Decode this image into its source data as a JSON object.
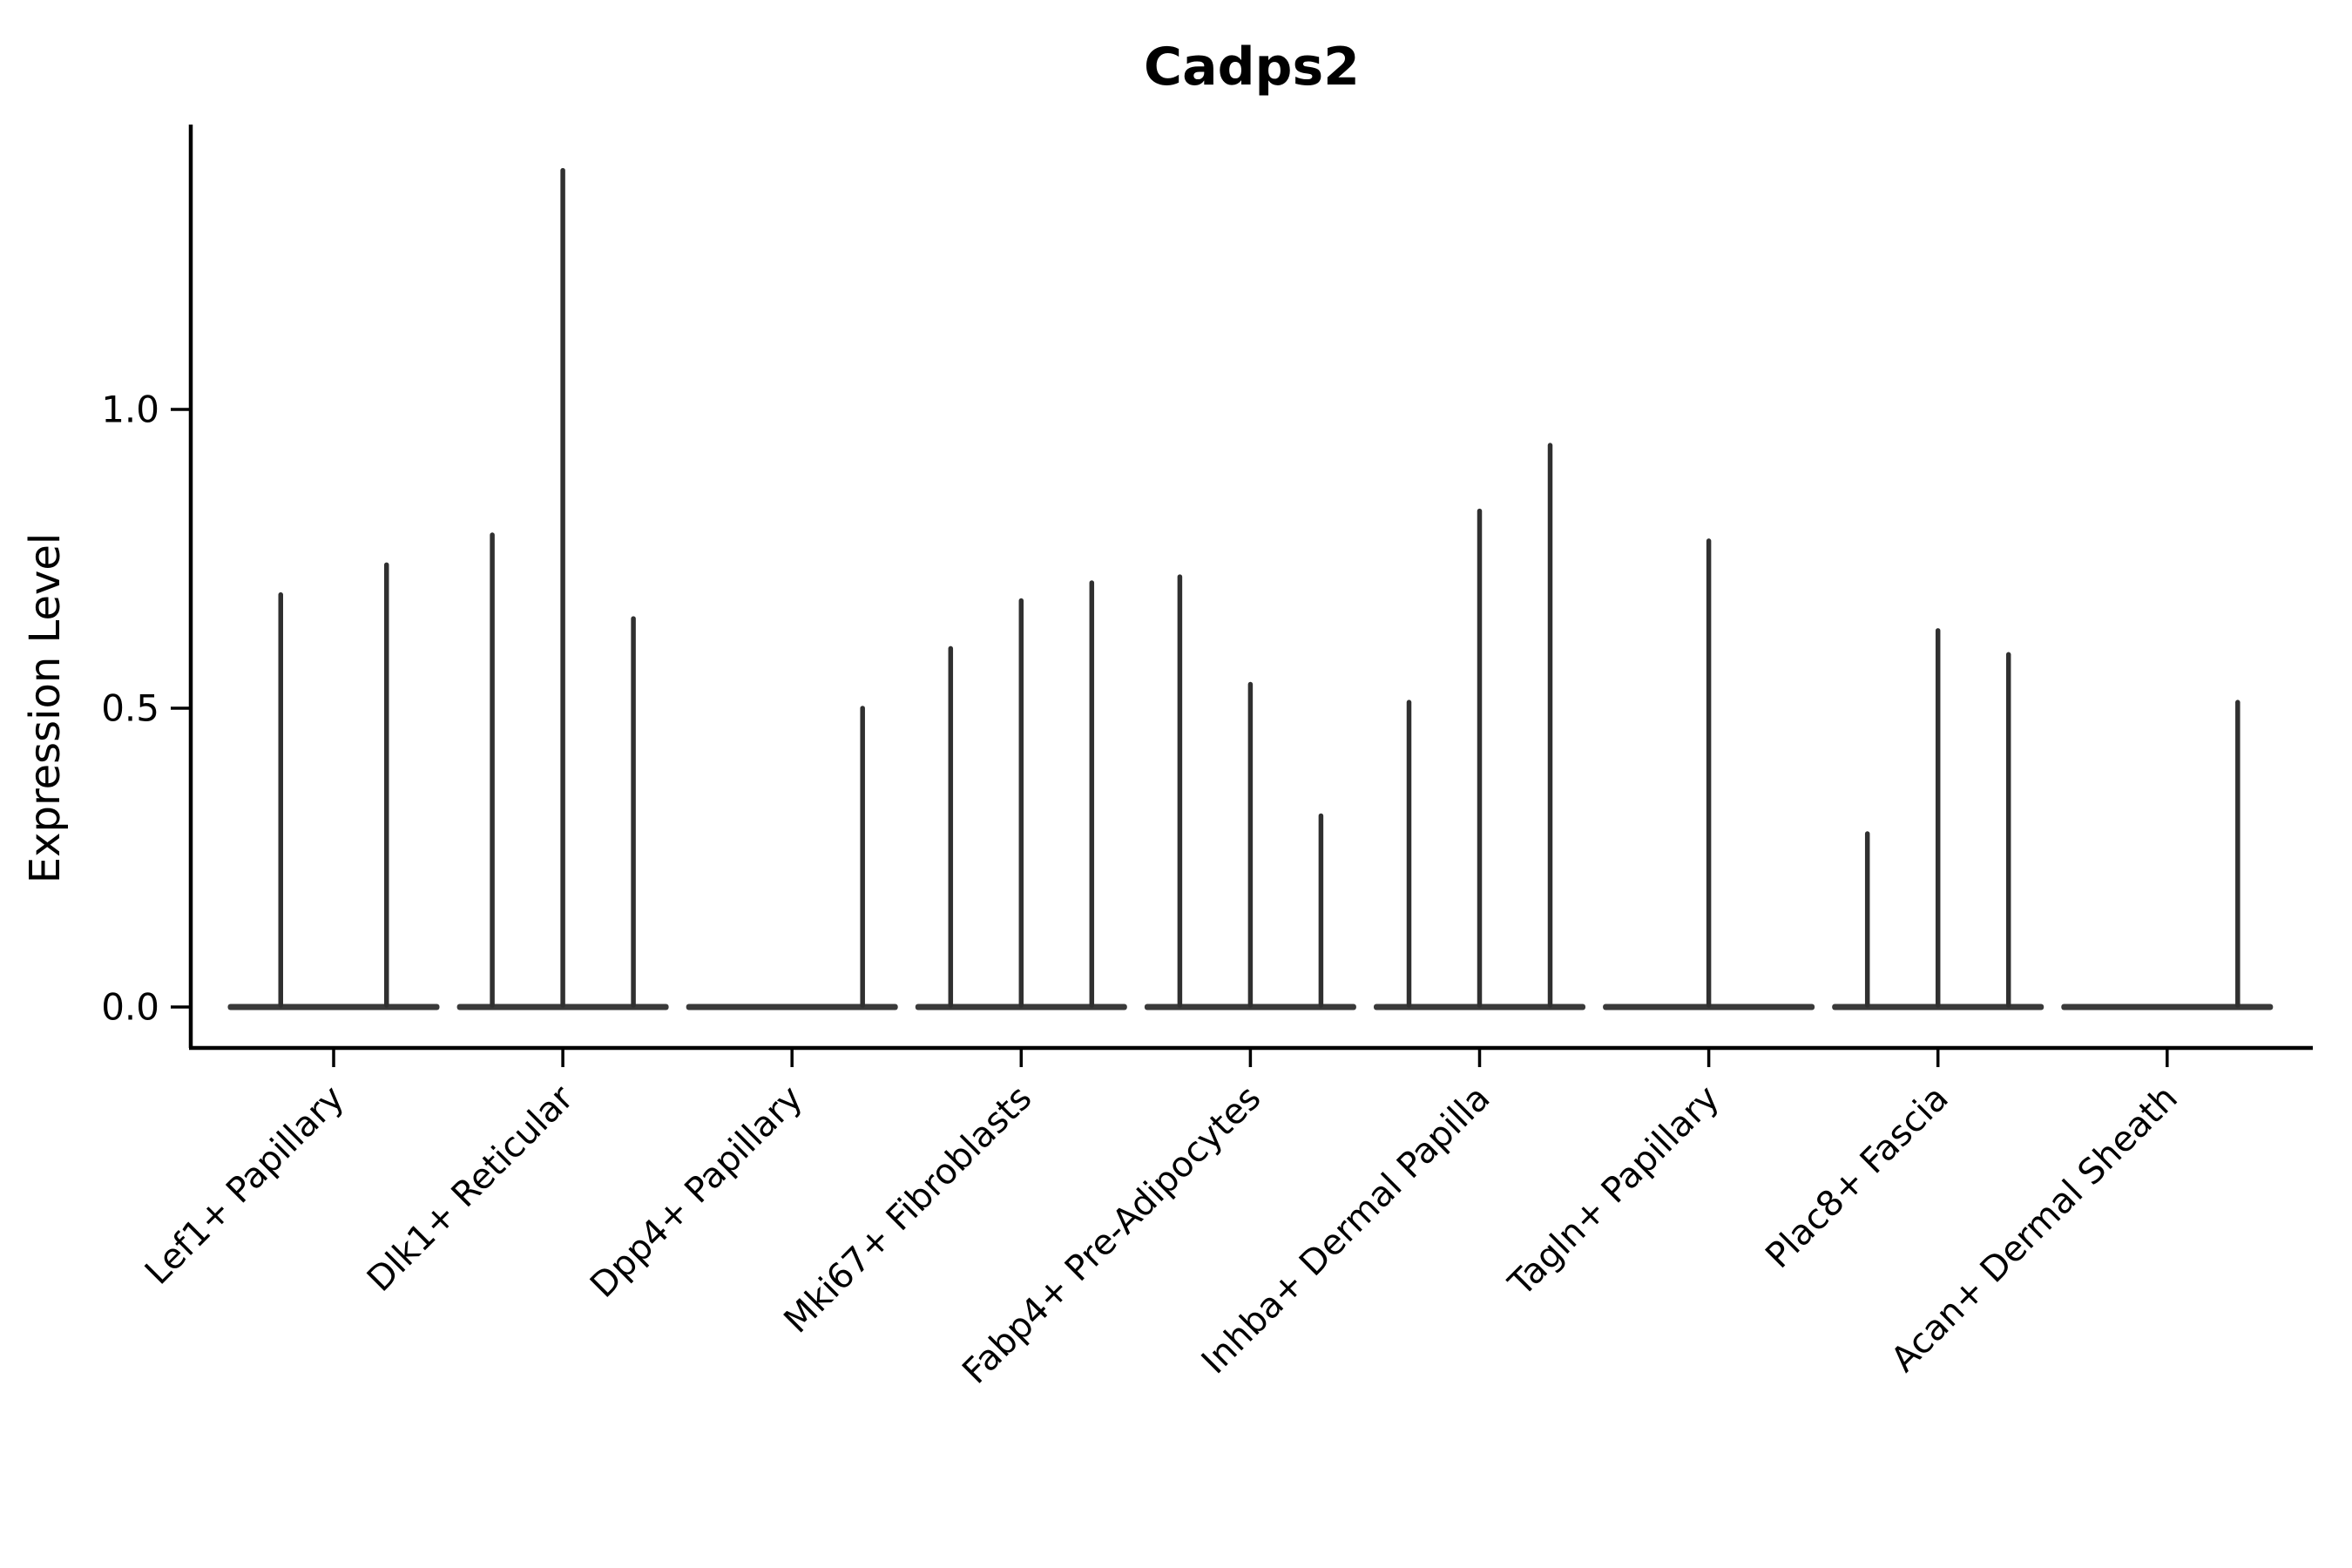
{
  "title": "Cadps2",
  "axes": {
    "ylabel": "Expression Level",
    "ytick_labels": [
      "0.0",
      "0.5",
      "1.0"
    ]
  },
  "chart_data": {
    "type": "violin",
    "title": "Cadps2",
    "xlabel": "",
    "ylabel": "Expression Level",
    "ylim": [
      -0.07,
      1.48
    ],
    "yticks": [
      0.0,
      0.5,
      1.0
    ],
    "grid": false,
    "legend": false,
    "description": "Sparse single-cell expression violins: each category shows flat violin bodies at 0 expression with thin vertical density spikes reaching the maximum expression value of each sub-violin. A value of 0 means a completely flat violin (no spike).",
    "categories": [
      "Lef1+ Papillary",
      "Dlk1+ Reticular",
      "Dpp4+ Papillary",
      "Mki67+ Fibroblasts",
      "Fabp4+ Pre-Adipocytes",
      "Inhba+ Dermal Papilla",
      "Tagln+ Papillary",
      "Plac8+ Fascia",
      "Acan+ Dermal Sheath"
    ],
    "series": [
      {
        "category": "Lef1+ Papillary",
        "spike_max_values": [
          0.69,
          0.74
        ]
      },
      {
        "category": "Dlk1+ Reticular",
        "spike_max_values": [
          0.79,
          1.4,
          0.65
        ]
      },
      {
        "category": "Dpp4+ Papillary",
        "spike_max_values": [
          0,
          0,
          0.5
        ]
      },
      {
        "category": "Mki67+ Fibroblasts",
        "spike_max_values": [
          0.6,
          0.68,
          0.71
        ]
      },
      {
        "category": "Fabp4+ Pre-Adipocytes",
        "spike_max_values": [
          0.72,
          0.54,
          0.32
        ]
      },
      {
        "category": "Inhba+ Dermal Papilla",
        "spike_max_values": [
          0.51,
          0.83,
          0.94
        ]
      },
      {
        "category": "Tagln+ Papillary",
        "spike_max_values": [
          0,
          0.78,
          0
        ]
      },
      {
        "category": "Plac8+ Fascia",
        "spike_max_values": [
          0.29,
          0.63,
          0.59
        ]
      },
      {
        "category": "Acan+ Dermal Sheath",
        "spike_max_values": [
          0,
          0,
          0.51
        ]
      }
    ]
  }
}
